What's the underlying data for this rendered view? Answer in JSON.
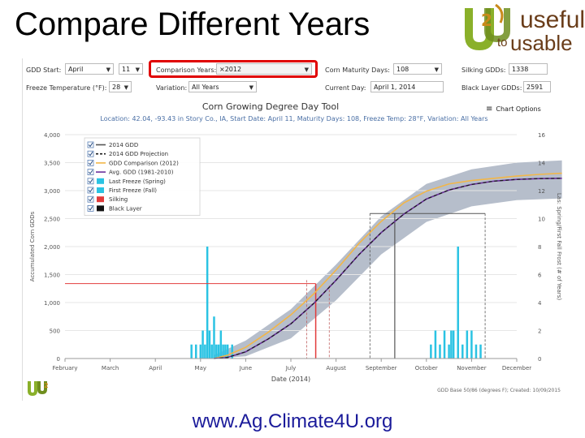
{
  "slide": {
    "title": "Compare Different Years",
    "url": "www.Ag.Climate4U.org"
  },
  "logo": {
    "useful": "useful",
    "to": "to",
    "usable": "usable"
  },
  "controls": {
    "gdd_start_label": "GDD Start:",
    "gdd_start_month": "April",
    "gdd_start_day": "11",
    "comparison_years_label": "Comparison Years:",
    "comparison_years_value": "×2012",
    "maturity_label": "Corn Maturity Days:",
    "maturity_value": "108",
    "silking_label": "Silking GDDs:",
    "silking_value": "1338",
    "freeze_label": "Freeze Temperature (°F):",
    "freeze_value": "28",
    "variation_label": "Variation:",
    "variation_value": "All Years",
    "current_day_label": "Current Day:",
    "current_day_value": "April 1, 2014",
    "black_layer_label": "Black Layer GDDs:",
    "black_layer_value": "2591"
  },
  "chart_header": {
    "title": "Corn Growing Degree Day Tool",
    "subtitle": "Location: 42.04, -93.43 in Story Co., IA, Start Date: April 11, Maturity Days: 108, Freeze Temp: 28°F, Variation: All Years",
    "options_label": "Chart Options"
  },
  "footer_note": "GDD Base 50/86 (degrees F); Created: 10/09/2015",
  "colors": {
    "gdd_2014": "#555555",
    "projection": "#1a1a1a",
    "comparison": "#f2b648",
    "avg": "#6a2f9c",
    "freeze": "#2bc3e3",
    "silking": "#e23b3b",
    "black_layer": "#111111",
    "band": "#a9b3c2"
  },
  "chart_data": {
    "type": "line",
    "xlabel": "Date (2014)",
    "ylabel": "Accumulated Corn GDDs",
    "y2label": "Las: Spring/First Fall Frost (# of Years)",
    "x_months": [
      "February",
      "March",
      "April",
      "May",
      "June",
      "July",
      "August",
      "September",
      "October",
      "November",
      "December"
    ],
    "ylim": [
      0,
      4000
    ],
    "y_ticks": [
      "0",
      "500",
      "1,000",
      "1,500",
      "2,000",
      "2,500",
      "3,000",
      "3,500",
      "4,000"
    ],
    "y2lim": [
      0,
      16
    ],
    "y2_ticks": [
      "0",
      "2",
      "4",
      "6",
      "8",
      "10",
      "12",
      "14",
      "16"
    ],
    "legend": [
      {
        "label": "2014 GDD",
        "color": "#555555",
        "style": "line"
      },
      {
        "label": "2014 GDD Projection",
        "color": "#1a1a1a",
        "style": "dashed"
      },
      {
        "label": "GDD Comparison (2012)",
        "color": "#f2b648",
        "style": "line"
      },
      {
        "label": "Avg. GDD (1981-2010)",
        "color": "#6a2f9c",
        "style": "line"
      },
      {
        "label": "Last Freeze (Spring)",
        "color": "#2bc3e3",
        "style": "box"
      },
      {
        "label": "First Freeze (Fall)",
        "color": "#2bc3e3",
        "style": "box"
      },
      {
        "label": "Silking",
        "color": "#e23b3b",
        "style": "box"
      },
      {
        "label": "Black Layer",
        "color": "#111111",
        "style": "box"
      }
    ],
    "series": [
      {
        "name": "Avg. GDD (1981-2010)",
        "x_month": [
          3.3,
          3.6,
          4.0,
          4.5,
          5.0,
          5.5,
          6.0,
          6.5,
          7.0,
          7.5,
          8.0,
          8.5,
          9.0,
          9.5,
          10.0,
          10.5,
          11.0
        ],
        "y": [
          0,
          20,
          120,
          350,
          620,
          980,
          1400,
          1850,
          2250,
          2580,
          2850,
          3010,
          3110,
          3170,
          3200,
          3215,
          3220
        ]
      },
      {
        "name": "GDD Comparison (2012)",
        "x_month": [
          3.3,
          3.6,
          4.0,
          4.5,
          5.0,
          5.5,
          6.0,
          6.5,
          7.0,
          7.5,
          8.0,
          8.5,
          9.0,
          9.5,
          10.0,
          10.5,
          11.0
        ],
        "y": [
          0,
          60,
          200,
          470,
          780,
          1150,
          1580,
          2050,
          2450,
          2780,
          2990,
          3120,
          3180,
          3220,
          3260,
          3290,
          3310
        ]
      },
      {
        "name": "Band upper",
        "x_month": [
          3.3,
          4.0,
          5.0,
          6.0,
          7.0,
          8.0,
          9.0,
          10.0,
          11.0
        ],
        "y": [
          60,
          320,
          880,
          1680,
          2540,
          3120,
          3380,
          3500,
          3540
        ]
      },
      {
        "name": "Band lower",
        "x_month": [
          3.3,
          4.0,
          5.0,
          6.0,
          7.0,
          8.0,
          9.0,
          10.0,
          11.0
        ],
        "y": [
          0,
          40,
          360,
          1040,
          1860,
          2440,
          2720,
          2830,
          2860
        ]
      }
    ],
    "last_freeze_bars": {
      "x_month": [
        2.8,
        2.9,
        3.0,
        3.05,
        3.1,
        3.15,
        3.2,
        3.25,
        3.3,
        3.35,
        3.4,
        3.45,
        3.5,
        3.55,
        3.6,
        3.7
      ],
      "years": [
        1,
        1,
        1,
        2,
        1,
        8,
        2,
        1,
        3,
        1,
        1,
        2,
        1,
        1,
        1,
        1
      ]
    },
    "first_freeze_bars": {
      "x_month": [
        8.1,
        8.2,
        8.3,
        8.4,
        8.5,
        8.55,
        8.6,
        8.7,
        8.8,
        8.9,
        9.0,
        9.1,
        9.2
      ],
      "years": [
        1,
        2,
        1,
        2,
        1,
        2,
        2,
        8,
        1,
        2,
        2,
        1,
        1
      ]
    },
    "silking_line": {
      "x_month": 5.55,
      "y": 1338
    },
    "black_layer_line": {
      "x_month": 7.3,
      "y": 2591
    }
  }
}
